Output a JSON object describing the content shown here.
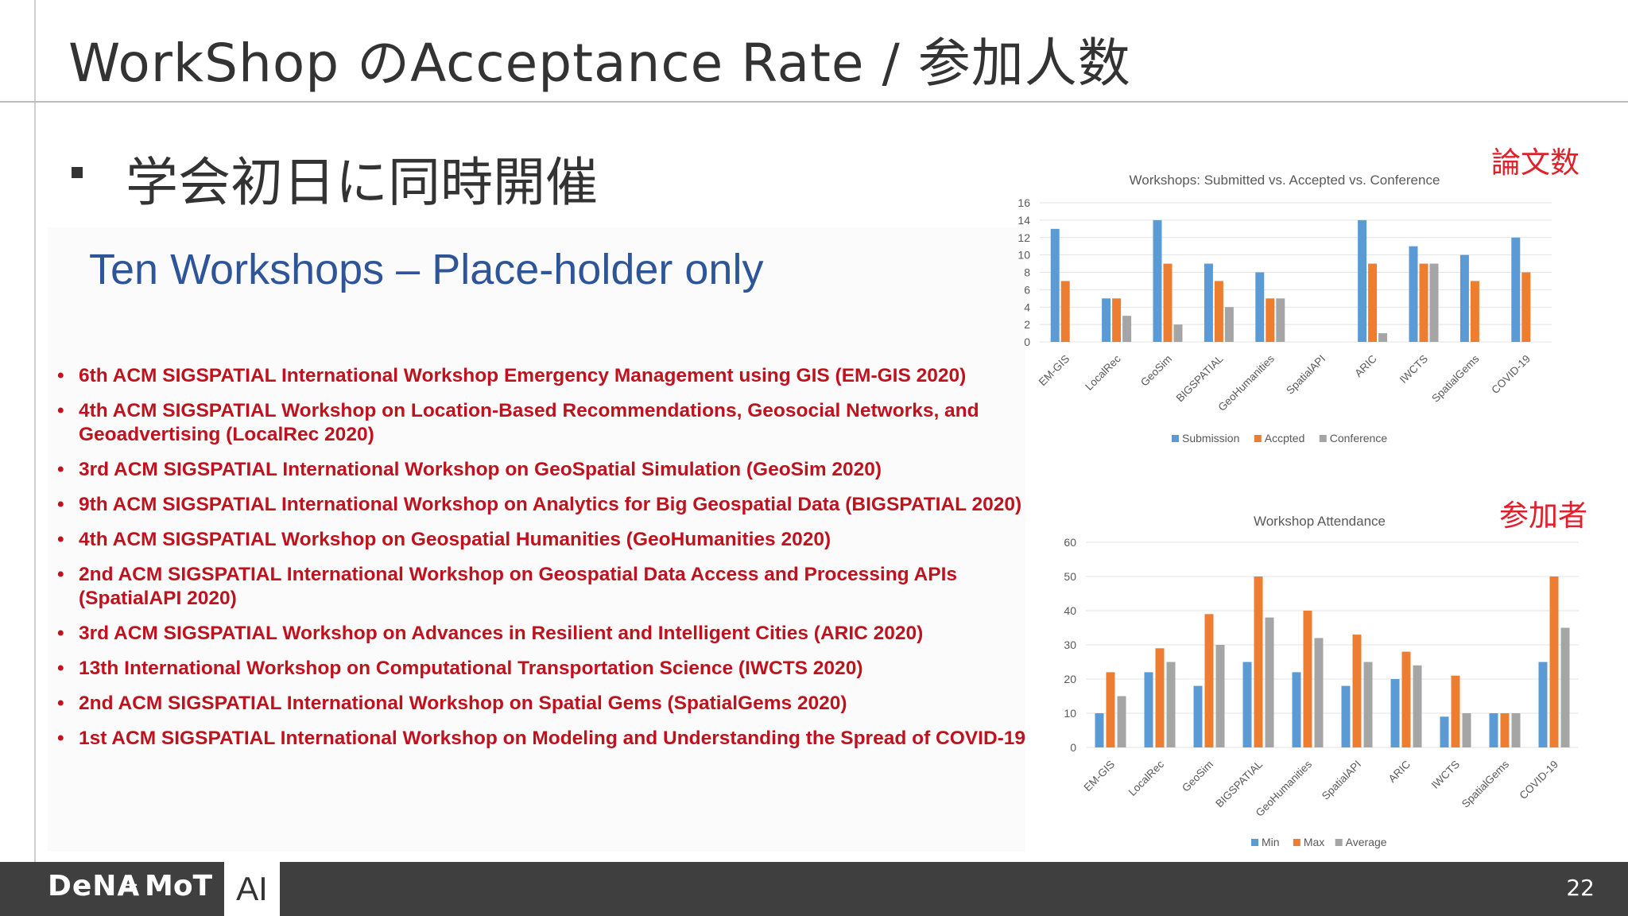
{
  "slide": {
    "title": "WorkShop のAcceptance Rate / 参加人数",
    "bullet": "学会初日に同時開催",
    "page_number": "22",
    "footer_logo_dena": "DeNA",
    "footer_logo_plus": "+",
    "footer_logo_mot": "MoT",
    "footer_logo_ai": "AI"
  },
  "embedded": {
    "heading": "Ten Workshops – Place-holder only",
    "workshops": [
      "6th ACM SIGSPATIAL International Workshop Emergency Management using GIS (EM-GIS 2020)",
      "4th ACM SIGSPATIAL Workshop on Location-Based Recommendations, Geosocial Networks, and Geoadvertising (LocalRec 2020)",
      "3rd ACM SIGSPATIAL International Workshop on GeoSpatial Simulation (GeoSim 2020)",
      "9th ACM SIGSPATIAL International Workshop on Analytics for Big Geospatial Data (BIGSPATIAL 2020)",
      "4th ACM SIGSPATIAL Workshop on Geospatial Humanities (GeoHumanities 2020)",
      "2nd ACM SIGSPATIAL International Workshop on Geospatial Data Access and Processing APIs (SpatialAPI 2020)",
      "3rd ACM SIGSPATIAL Workshop on Advances in Resilient and Intelligent Cities (ARIC 2020)",
      "13th International Workshop on Computational Transportation Science (IWCTS 2020)",
      "2nd ACM SIGSPATIAL International Workshop on Spatial Gems (SpatialGems 2020)",
      "1st ACM SIGSPATIAL International Workshop on Modeling and Understanding the Spread of COVID-19"
    ]
  },
  "labels": {
    "papers": "論文数",
    "attendees": "参加者"
  },
  "colors": {
    "series1": "#5b9bd5",
    "series2": "#ed7d31",
    "series3": "#a5a5a5",
    "accent_red": "#e0202a",
    "list_red": "#c0121e"
  },
  "chart_data": [
    {
      "type": "bar",
      "title": "Workshops: Submitted vs. Accepted vs. Conference",
      "categories": [
        "EM-GIS",
        "LocalRec",
        "GeoSim",
        "BIGSPATIAL",
        "GeoHumanities",
        "SpatialAPI",
        "ARIC",
        "IWCTS",
        "SpatialGems",
        "COVID-19"
      ],
      "series": [
        {
          "name": "Submission",
          "values": [
            13,
            5,
            14,
            9,
            8,
            0,
            14,
            11,
            10,
            12
          ]
        },
        {
          "name": "Accpted",
          "values": [
            7,
            5,
            9,
            7,
            5,
            0,
            9,
            9,
            7,
            8
          ]
        },
        {
          "name": "Conference",
          "values": [
            0,
            3,
            2,
            4,
            5,
            0,
            1,
            9,
            0,
            0
          ]
        }
      ],
      "yticks": [
        "0",
        "2",
        "4",
        "6",
        "8",
        "10",
        "12",
        "14",
        "16"
      ],
      "ylim": [
        0,
        16
      ],
      "grid": true,
      "legend_position": "bottom"
    },
    {
      "type": "bar",
      "title": "Workshop Attendance",
      "categories": [
        "EM-GIS",
        "LocalRec",
        "GeoSim",
        "BIGSPATIAL",
        "GeoHumanities",
        "SpatialAPI",
        "ARIC",
        "IWCTS",
        "SpatialGems",
        "COVID-19"
      ],
      "series": [
        {
          "name": "Min",
          "values": [
            10,
            22,
            18,
            25,
            22,
            18,
            20,
            9,
            10,
            25
          ]
        },
        {
          "name": "Max",
          "values": [
            22,
            29,
            39,
            50,
            40,
            33,
            28,
            21,
            10,
            50
          ]
        },
        {
          "name": "Average",
          "values": [
            15,
            25,
            30,
            38,
            32,
            25,
            24,
            10,
            10,
            35
          ]
        }
      ],
      "yticks": [
        "0",
        "10",
        "20",
        "30",
        "40",
        "50",
        "60"
      ],
      "ylim": [
        0,
        60
      ],
      "grid": true,
      "legend_position": "bottom"
    }
  ]
}
